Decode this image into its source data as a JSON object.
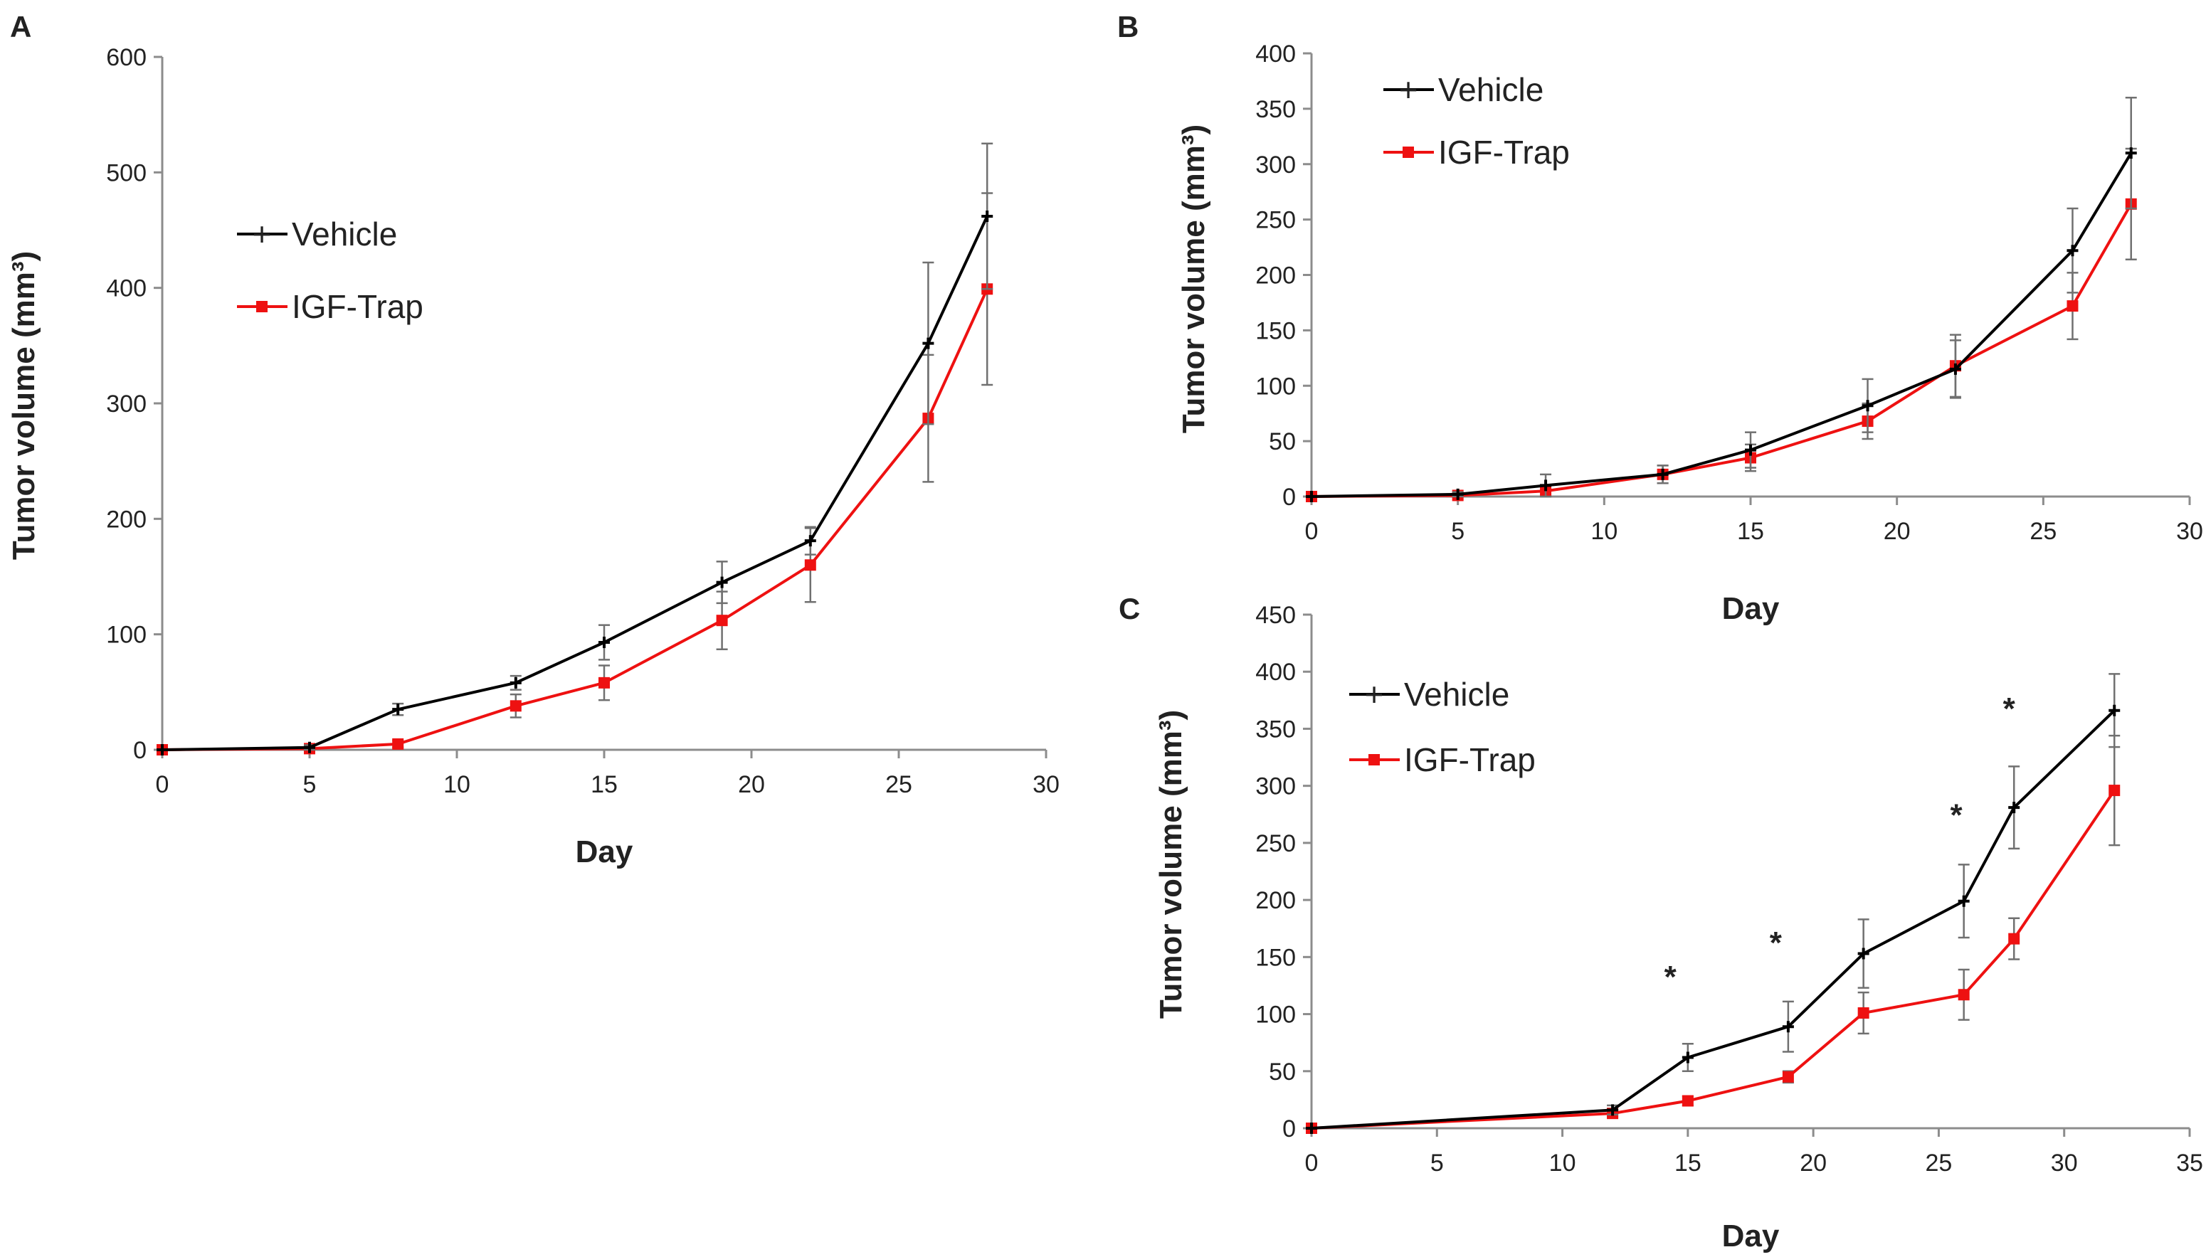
{
  "colors": {
    "vehicle": "#000000",
    "igf_trap": "#ee1111",
    "vehicle_err": "#707070",
    "igf_trap_err": "#707070",
    "axis": "#8c8c8c"
  },
  "chart_data": [
    {
      "panel": "A",
      "type": "line",
      "title": "",
      "xlabel": "Day",
      "ylabel": "Tumor volume (mm³)",
      "xlim": [
        0,
        30
      ],
      "ylim": [
        0,
        600
      ],
      "xticks": [
        0,
        5,
        10,
        15,
        20,
        25,
        30
      ],
      "yticks": [
        0,
        100,
        200,
        300,
        400,
        500,
        600
      ],
      "legend_position": "upper-left-inside",
      "series": [
        {
          "name": "Vehicle",
          "marker": "plus",
          "x": [
            0,
            5,
            8,
            12,
            15,
            19,
            22,
            26,
            28
          ],
          "y": [
            0,
            2,
            35,
            58,
            93,
            145,
            181,
            352,
            462
          ],
          "err": [
            0,
            2,
            5,
            6,
            15,
            18,
            12,
            70,
            63
          ]
        },
        {
          "name": "IGF-Trap",
          "marker": "square",
          "x": [
            0,
            5,
            8,
            12,
            15,
            19,
            22,
            26,
            28
          ],
          "y": [
            0,
            1,
            5,
            38,
            58,
            112,
            160,
            287,
            399
          ],
          "err": [
            0,
            1,
            3,
            10,
            15,
            25,
            32,
            55,
            83
          ]
        }
      ]
    },
    {
      "panel": "B",
      "type": "line",
      "title": "",
      "xlabel": "Day",
      "ylabel": "Tumor volume (mm³)",
      "xlim": [
        0,
        30
      ],
      "ylim": [
        0,
        400
      ],
      "xticks": [
        0,
        5,
        10,
        15,
        20,
        25,
        30
      ],
      "yticks": [
        0,
        50,
        100,
        150,
        200,
        250,
        300,
        350,
        400
      ],
      "legend_position": "upper-left-inside",
      "series": [
        {
          "name": "Vehicle",
          "marker": "plus",
          "x": [
            0,
            5,
            8,
            12,
            15,
            19,
            22,
            26,
            28
          ],
          "y": [
            0,
            2,
            10,
            20,
            42,
            82,
            115,
            222,
            310
          ],
          "err": [
            0,
            2,
            10,
            8,
            16,
            24,
            26,
            38,
            50
          ]
        },
        {
          "name": "IGF-Trap",
          "marker": "square",
          "x": [
            0,
            5,
            8,
            12,
            15,
            19,
            22,
            26,
            28
          ],
          "y": [
            0,
            1,
            5,
            20,
            35,
            68,
            118,
            172,
            264
          ],
          "err": [
            0,
            1,
            5,
            8,
            12,
            16,
            28,
            30,
            50
          ]
        }
      ]
    },
    {
      "panel": "C",
      "type": "line",
      "title": "",
      "xlabel": "Day",
      "ylabel": "Tumor volume (mm³)",
      "xlim": [
        0,
        35
      ],
      "ylim": [
        0,
        450
      ],
      "xticks": [
        0,
        5,
        10,
        15,
        20,
        25,
        30,
        35
      ],
      "yticks": [
        0,
        50,
        100,
        150,
        200,
        250,
        300,
        350,
        400,
        450
      ],
      "legend_position": "upper-left-inside",
      "significance": [
        {
          "label": "*",
          "x": 14.3,
          "y": 137
        },
        {
          "label": "*",
          "x": 18.5,
          "y": 167
        },
        {
          "label": "*",
          "x": 25.7,
          "y": 279
        },
        {
          "label": "*",
          "x": 27.8,
          "y": 372
        }
      ],
      "series": [
        {
          "name": "Vehicle",
          "marker": "plus",
          "x": [
            0,
            12,
            15,
            19,
            22,
            26,
            28,
            32
          ],
          "y": [
            0,
            16,
            62,
            89,
            153,
            199,
            281,
            366
          ],
          "err": [
            0,
            4,
            12,
            22,
            30,
            32,
            36,
            32
          ]
        },
        {
          "name": "IGF-Trap",
          "marker": "square",
          "x": [
            0,
            12,
            15,
            19,
            22,
            26,
            28,
            32
          ],
          "y": [
            0,
            13,
            24,
            45,
            101,
            117,
            166,
            296
          ],
          "err": [
            0,
            3,
            4,
            5,
            18,
            22,
            18,
            48
          ]
        }
      ]
    }
  ]
}
